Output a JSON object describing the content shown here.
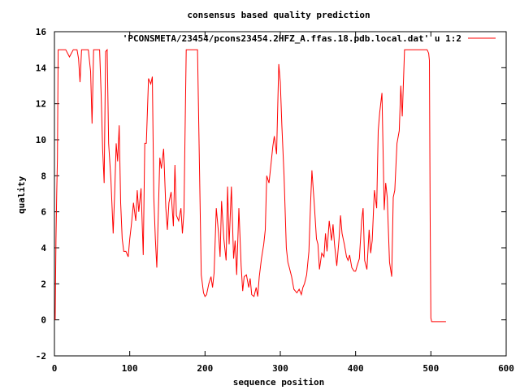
{
  "chart_data": {
    "type": "line",
    "title": "consensus based quality prediction",
    "xlabel": "sequence position",
    "ylabel": "quality",
    "xlim": [
      0,
      600
    ],
    "ylim": [
      -2,
      16
    ],
    "xticks": [
      0,
      100,
      200,
      300,
      400,
      500,
      600
    ],
    "yticks": [
      -2,
      0,
      2,
      4,
      6,
      8,
      10,
      12,
      14,
      16
    ],
    "grid": false,
    "legend_position": "top-right",
    "series": [
      {
        "name": "'PCONSMETA/23454/pcons23454.2HFZ_A.ffas.18.pdb.local.dat' u 1:2",
        "color": "#ff0000",
        "x": [
          1,
          2,
          3,
          4,
          5,
          6,
          8,
          10,
          15,
          20,
          25,
          30,
          32,
          34,
          36,
          40,
          45,
          48,
          50,
          52,
          55,
          60,
          62,
          64,
          66,
          68,
          70,
          72,
          75,
          78,
          80,
          82,
          84,
          86,
          88,
          90,
          92,
          95,
          98,
          100,
          102,
          105,
          108,
          110,
          112,
          115,
          118,
          120,
          122,
          125,
          128,
          130,
          132,
          134,
          136,
          138,
          140,
          142,
          145,
          148,
          150,
          152,
          155,
          158,
          160,
          162,
          165,
          168,
          170,
          172,
          175,
          180,
          185,
          190,
          195,
          198,
          200,
          202,
          205,
          208,
          210,
          212,
          215,
          218,
          220,
          222,
          225,
          228,
          230,
          232,
          235,
          238,
          240,
          242,
          245,
          248,
          250,
          252,
          255,
          258,
          260,
          262,
          265,
          268,
          270,
          272,
          275,
          278,
          280,
          282,
          285,
          288,
          290,
          292,
          295,
          298,
          300,
          302,
          305,
          308,
          310,
          312,
          315,
          318,
          320,
          322,
          325,
          328,
          330,
          332,
          335,
          338,
          340,
          342,
          345,
          348,
          350,
          352,
          355,
          358,
          360,
          362,
          365,
          368,
          370,
          372,
          375,
          378,
          380,
          382,
          385,
          388,
          390,
          392,
          395,
          398,
          400,
          402,
          405,
          408,
          410,
          412,
          415,
          418,
          420,
          422,
          425,
          428,
          430,
          432,
          435,
          438,
          440,
          442,
          445,
          448,
          450,
          452,
          455,
          458,
          460,
          462,
          465,
          470,
          480,
          490,
          495,
          497,
          498,
          499,
          500,
          501,
          505,
          510,
          515,
          520
        ],
        "values": [
          0,
          4.5,
          7,
          9,
          15,
          15,
          15,
          15,
          15,
          14.6,
          15,
          15,
          14.5,
          13.2,
          15,
          15,
          15,
          13.8,
          10.9,
          15,
          15,
          15,
          12.5,
          9.5,
          7.6,
          14.9,
          15,
          9.8,
          7.8,
          4.8,
          7,
          9.8,
          8.8,
          10.8,
          6.5,
          4.5,
          3.8,
          3.8,
          3.5,
          4.5,
          5.2,
          6.5,
          5.5,
          7.2,
          6,
          7.3,
          3.6,
          9.8,
          9.8,
          13.4,
          13.1,
          13.5,
          6.8,
          4.5,
          2.9,
          6,
          9,
          8.4,
          9.5,
          6.2,
          5,
          6.5,
          7.1,
          5.2,
          8.6,
          5.8,
          5.5,
          6.2,
          4.8,
          6,
          15,
          15,
          15,
          15,
          2.5,
          1.5,
          1.3,
          1.4,
          2,
          2.4,
          1.8,
          2.6,
          6.2,
          4.8,
          3.5,
          6.6,
          4.5,
          3.3,
          7.4,
          4.2,
          7.4,
          3.4,
          4.4,
          2.5,
          6.2,
          3,
          1.6,
          2.4,
          2.5,
          1.8,
          2.3,
          1.4,
          1.3,
          1.8,
          1.3,
          2.4,
          3.4,
          4.2,
          5,
          8,
          7.6,
          8.8,
          9.6,
          10.2,
          9.2,
          14.2,
          13.2,
          10.8,
          8,
          4,
          3.2,
          2.9,
          2.4,
          1.7,
          1.6,
          1.5,
          1.7,
          1.4,
          1.8,
          2,
          2.5,
          3.8,
          6.3,
          8.3,
          6.5,
          4.5,
          4.2,
          2.8,
          3.7,
          3.5,
          4.8,
          3.8,
          5.5,
          4.4,
          5.3,
          4.2,
          3,
          4.5,
          5.8,
          4.8,
          4.2,
          3.5,
          3.3,
          3.6,
          2.9,
          2.7,
          2.7,
          3,
          3.4,
          5.5,
          6.2,
          3.3,
          2.8,
          5,
          3.7,
          4.4,
          7.2,
          6.2,
          10.5,
          11.5,
          12.6,
          6.1,
          7.6,
          6.8,
          3.2,
          2.4,
          6.8,
          7.2,
          9.8,
          10.5,
          13,
          11.3,
          15,
          15,
          15,
          15,
          15,
          14.8,
          14.4,
          6,
          0.1,
          -0.1,
          -0.1,
          -0.1,
          -0.1,
          -0.1
        ]
      }
    ]
  }
}
